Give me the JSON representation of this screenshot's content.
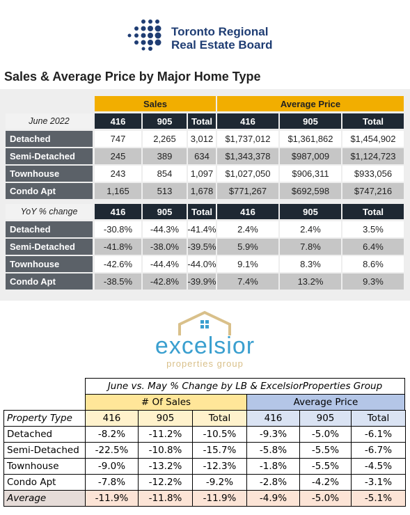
{
  "header": {
    "logo_line1": "Toronto Regional",
    "logo_line2": "Real Estate Board"
  },
  "title": "Sales & Average Price by Major Home Type",
  "table_1": {
    "groups": [
      "Sales",
      "Average Price"
    ],
    "columns": [
      "June 2022",
      "416",
      "905",
      "Total",
      "416",
      "905",
      "Total"
    ],
    "rows": [
      [
        "Detached",
        "747",
        "2,265",
        "3,012",
        "$1,737,012",
        "$1,361,862",
        "$1,454,902"
      ],
      [
        "Semi-Detached",
        "245",
        "389",
        "634",
        "$1,343,378",
        "$987,009",
        "$1,124,723"
      ],
      [
        "Townhouse",
        "243",
        "854",
        "1,097",
        "$1,027,050",
        "$906,311",
        "$933,056"
      ],
      [
        "Condo Apt",
        "1,165",
        "513",
        "1,678",
        "$771,267",
        "$692,598",
        "$747,216"
      ]
    ]
  },
  "table_2": {
    "columns": [
      "YoY % change",
      "416",
      "905",
      "Total",
      "416",
      "905",
      "Total"
    ],
    "rows": [
      [
        "Detached",
        "-30.8%",
        "-44.3%",
        "-41.4%",
        "2.4%",
        "2.4%",
        "3.5%"
      ],
      [
        "Semi-Detached",
        "-41.8%",
        "-38.0%",
        "-39.5%",
        "5.9%",
        "7.8%",
        "6.4%"
      ],
      [
        "Townhouse",
        "-42.6%",
        "-44.4%",
        "-44.0%",
        "9.1%",
        "8.3%",
        "8.6%"
      ],
      [
        "Condo Apt",
        "-38.5%",
        "-42.8%",
        "-39.9%",
        "7.4%",
        "13.2%",
        "9.3%"
      ]
    ]
  },
  "brand": {
    "name": "excelsior",
    "tagline": "properties group"
  },
  "table_3": {
    "title": "June vs. May % Change by LB & ExcelsiorProperties Group",
    "groups": [
      "# Of Sales",
      "Average Price"
    ],
    "columns": [
      "Property Type",
      "416",
      "905",
      "Total",
      "416",
      "905",
      "Total"
    ],
    "rows": [
      [
        "Detached",
        "-8.2%",
        "-11.2%",
        "-10.5%",
        "-9.3%",
        "-5.0%",
        "-6.1%"
      ],
      [
        "Semi-Detached",
        "-22.5%",
        "-10.8%",
        "-15.7%",
        "-5.8%",
        "-5.5%",
        "-6.7%"
      ],
      [
        "Townhouse",
        "-9.0%",
        "-13.2%",
        "-12.3%",
        "-1.8%",
        "-5.5%",
        "-4.5%"
      ],
      [
        "Condo Apt",
        "-7.8%",
        "-12.2%",
        "-9.2%",
        "-2.8%",
        "-4.2%",
        "-3.1%"
      ],
      [
        "Average",
        "-11.9%",
        "-11.8%",
        "-11.9%",
        "-4.9%",
        "-5.0%",
        "-5.1%"
      ]
    ]
  }
}
